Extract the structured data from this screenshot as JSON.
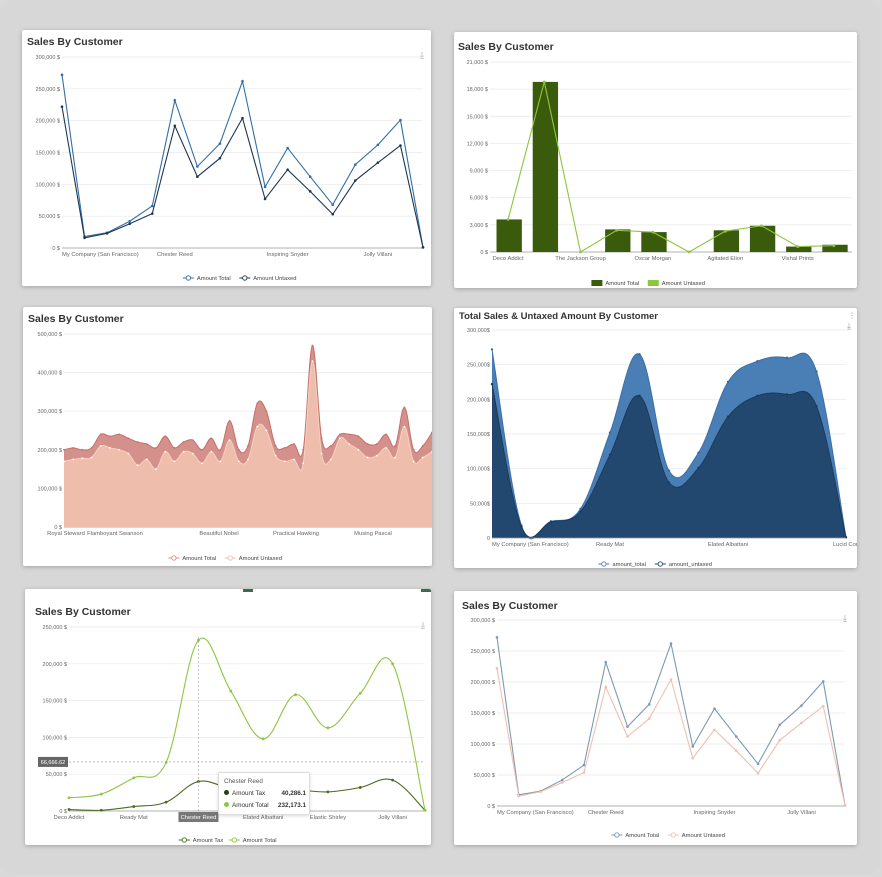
{
  "icons": {
    "download": "download-icon",
    "menu": "kebab-menu-icon"
  },
  "chart_data": [
    {
      "id": "c1",
      "type": "line",
      "title": "Sales By Customer",
      "ylim": [
        0,
        300000
      ],
      "yticks": [
        "0 $",
        "50,000 $",
        "100,000 $",
        "150,000 $",
        "200,000 $",
        "250,000 $",
        "300,000 $"
      ],
      "xlabels": [
        "My Company (San Francisco)",
        "Chester Reed",
        "Inspiring Snyder",
        "Jolly Villani"
      ],
      "x_label_idx": [
        0,
        5,
        10,
        14
      ],
      "series": [
        {
          "name": "Amount Total",
          "color": "#2f6fa5",
          "values": [
            272000,
            18000,
            24000,
            42000,
            66000,
            232000,
            128000,
            164000,
            262000,
            96000,
            157000,
            112000,
            68000,
            131000,
            162000,
            201000,
            1000
          ]
        },
        {
          "name": "Amount Untaxed",
          "color": "#1f3650",
          "values": [
            222000,
            16000,
            23000,
            38000,
            54000,
            192000,
            112000,
            141000,
            204000,
            77000,
            123000,
            89000,
            53000,
            106000,
            134000,
            161000,
            1000
          ]
        }
      ]
    },
    {
      "id": "c2",
      "type": "bar",
      "title": "Sales By Customer",
      "ylim": [
        0,
        21000
      ],
      "yticks": [
        "0 $",
        "3,000 $",
        "6,000 $",
        "9,000 $",
        "12,000 $",
        "15,000 $",
        "18,000 $",
        "21,000 $"
      ],
      "categories": [
        "Deco Addict",
        "",
        "The Jackson Group",
        "",
        "Oscar Morgan",
        "",
        "Agitated Elion",
        "",
        "Vishal Prints",
        ""
      ],
      "series": [
        {
          "name": "Amount Total",
          "color": "#3b5b0c",
          "values": [
            3600,
            18800,
            0,
            2500,
            2200,
            0,
            2400,
            2900,
            600,
            800
          ]
        },
        {
          "name": "Amount Untaxed",
          "color": "#8dc63f",
          "values": [
            3600,
            18800,
            0,
            2400,
            2200,
            0,
            2300,
            2900,
            600,
            700
          ]
        }
      ]
    },
    {
      "id": "c3",
      "type": "area",
      "title": "Sales By Customer",
      "ylim": [
        0,
        500000
      ],
      "yticks": [
        "0 $",
        "100,000 $",
        "200,000 $",
        "300,000 $",
        "400,000 $",
        "500,000 $"
      ],
      "xlabels": [
        "Royal Steward",
        "Flamboyant Swanson",
        "Beautiful Nobel",
        "Practical Hawking",
        "Musing Pascal"
      ],
      "series": [
        {
          "name": "Amount Total",
          "color": "#d4908b",
          "values": [
            200000,
            205000,
            200000,
            205000,
            240000,
            235000,
            240000,
            230000,
            220000,
            215000,
            205000,
            235000,
            205000,
            220000,
            225000,
            200000,
            230000,
            200000,
            275000,
            200000,
            210000,
            320000,
            300000,
            210000,
            205000,
            215000,
            200000,
            470000,
            230000,
            210000,
            240000,
            240000,
            235000,
            215000,
            215000,
            240000,
            210000,
            310000,
            200000,
            210000,
            245000
          ]
        },
        {
          "name": "Amount Untaxed",
          "color": "#efc0ae",
          "values": [
            170000,
            175000,
            178000,
            180000,
            210000,
            205000,
            200000,
            190000,
            160000,
            175000,
            150000,
            195000,
            170000,
            195000,
            190000,
            165000,
            195000,
            170000,
            225000,
            170000,
            175000,
            260000,
            250000,
            185000,
            170000,
            175000,
            165000,
            430000,
            190000,
            175000,
            230000,
            215000,
            200000,
            180000,
            185000,
            205000,
            180000,
            260000,
            170000,
            180000,
            195000
          ]
        }
      ]
    },
    {
      "id": "c4",
      "type": "area",
      "title": "Total Sales & Untaxed Amount By Customer",
      "ylim": [
        0,
        300000
      ],
      "yticks": [
        "0",
        "50,000$",
        "100,000$",
        "150,000$",
        "200,000$",
        "250,000$",
        "300,000$"
      ],
      "xlabels": [
        "My Company (San Francisco)",
        "Ready Mat",
        "Elated Albattani",
        "Lucid Cori"
      ],
      "x_label_idx": [
        0,
        4,
        8,
        12
      ],
      "series": [
        {
          "name": "amount_total",
          "color": "#4a7fb5",
          "values": [
            272000,
            18000,
            24000,
            42000,
            152000,
            265000,
            97000,
            123000,
            225000,
            255000,
            260000,
            240000,
            1000
          ]
        },
        {
          "name": "amount_untaxed",
          "color": "#23486f",
          "values": [
            222000,
            16000,
            23000,
            38000,
            120000,
            205000,
            80000,
            101000,
            175000,
            205000,
            207000,
            190000,
            1000
          ]
        }
      ]
    },
    {
      "id": "c5",
      "type": "line",
      "title": "Sales By Customer",
      "ylim": [
        0,
        250000
      ],
      "yticks": [
        "0 $",
        "50,000 $",
        "100,000 $",
        "150,000 $",
        "200,000 $",
        "250,000 $"
      ],
      "xlabels": [
        "Deco Addict",
        "Ready Mat",
        "Chester Reed",
        "Elated Albattani",
        "Elastic Shirley",
        "Jolly Villani"
      ],
      "crosshair_label": "66,666.62",
      "crosshair_value": 66666.62,
      "tooltip": {
        "title": "Chester Reed",
        "rows": [
          {
            "label": "Amount Tax",
            "value": "40,286.1"
          },
          {
            "label": "Amount Total",
            "value": "232,173.1"
          }
        ]
      },
      "series": [
        {
          "name": "Amount Tax",
          "color": "#4a6b1c",
          "values": [
            2000,
            1000,
            6000,
            12000,
            40000,
            30000,
            22000,
            28000,
            26000,
            32000,
            42000,
            1000
          ]
        },
        {
          "name": "Amount Total",
          "color": "#8dc63f",
          "values": [
            18000,
            23000,
            45000,
            66000,
            232000,
            163000,
            98000,
            158000,
            113000,
            160000,
            200000,
            1000
          ]
        }
      ]
    },
    {
      "id": "c6",
      "type": "line",
      "title": "Sales By Customer",
      "ylim": [
        0,
        300000
      ],
      "yticks": [
        "0 $",
        "50,000 $",
        "100,000 $",
        "150,000 $",
        "200,000 $",
        "250,000 $",
        "300,000 $"
      ],
      "xlabels": [
        "My Company (San Francisco)",
        "Chester Reed",
        "Inspiring Snyder",
        "Jolly Villani"
      ],
      "x_label_idx": [
        0,
        5,
        10,
        14
      ],
      "series": [
        {
          "name": "Amount Total",
          "color": "#7e99b1",
          "values": [
            272000,
            18000,
            24000,
            42000,
            66000,
            232000,
            128000,
            164000,
            262000,
            96000,
            157000,
            112000,
            68000,
            131000,
            162000,
            201000,
            1000
          ]
        },
        {
          "name": "Amount Untaxed",
          "color": "#efc0ae",
          "values": [
            222000,
            16000,
            23000,
            38000,
            54000,
            192000,
            112000,
            141000,
            204000,
            77000,
            123000,
            89000,
            53000,
            106000,
            134000,
            161000,
            1000
          ]
        }
      ]
    }
  ]
}
